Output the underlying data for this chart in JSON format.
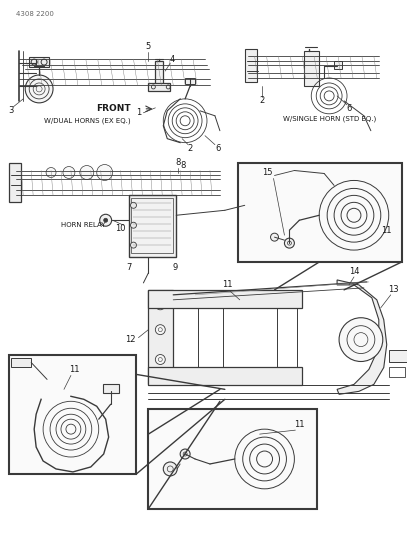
{
  "title": "4308 2200",
  "bg_color": "#ffffff",
  "line_color": "#3a3a3a",
  "text_color": "#1a1a1a",
  "gray": "#888888",
  "light_gray": "#cccccc",
  "labels": {
    "front": "FRONT",
    "dual": "W/DUAL HORNS (EX EQ.)",
    "single": "W/SINGLE HORN (STD EQ.)",
    "relay": "HORN RELAY"
  },
  "figsize": [
    4.08,
    5.33
  ],
  "dpi": 100
}
